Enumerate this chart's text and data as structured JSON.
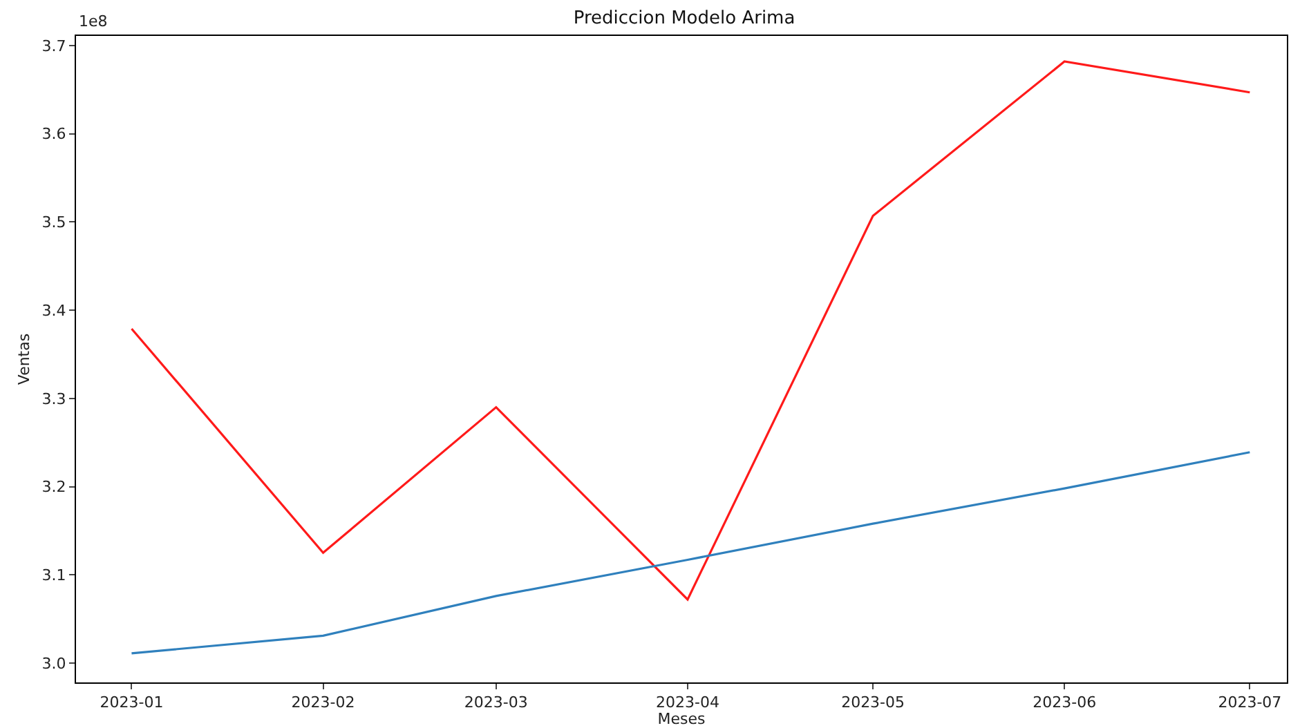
{
  "chart_data": {
    "type": "line",
    "title": "Prediccion Modelo Arima",
    "xlabel": "Meses",
    "ylabel": "Ventas",
    "annotations": [
      "1e8"
    ],
    "x": [
      "2023-01",
      "2023-02",
      "2023-03",
      "2023-04",
      "2023-05",
      "2023-06",
      "2023-07"
    ],
    "series": [
      {
        "color": "#ff1a1a",
        "values": [
          3.379,
          3.125,
          3.29,
          3.072,
          3.507,
          3.682,
          3.647
        ]
      },
      {
        "color": "#2f80bd",
        "values": [
          3.011,
          3.031,
          3.076,
          3.117,
          3.158,
          3.198,
          3.239
        ]
      }
    ],
    "xlim": [
      "2022-12-23",
      "2023-07-07"
    ],
    "xticks": [
      {
        "value": "2023-01",
        "label": "2023-01"
      },
      {
        "value": "2023-02",
        "label": "2023-02"
      },
      {
        "value": "2023-03",
        "label": "2023-03"
      },
      {
        "value": "2023-04",
        "label": "2023-04"
      },
      {
        "value": "2023-05",
        "label": "2023-05"
      },
      {
        "value": "2023-06",
        "label": "2023-06"
      },
      {
        "value": "2023-07",
        "label": "2023-07"
      }
    ],
    "ylim": [
      2.978,
      3.711
    ],
    "yticks": [
      {
        "value": 3.0,
        "label": "3.0"
      },
      {
        "value": 3.1,
        "label": "3.1"
      },
      {
        "value": 3.2,
        "label": "3.2"
      },
      {
        "value": 3.3,
        "label": "3.3"
      },
      {
        "value": 3.4,
        "label": "3.4"
      },
      {
        "value": 3.5,
        "label": "3.5"
      },
      {
        "value": 3.6,
        "label": "3.6"
      },
      {
        "value": 3.7,
        "label": "3.7"
      }
    ],
    "grid": false,
    "marker": "none",
    "line_style": "solid"
  }
}
